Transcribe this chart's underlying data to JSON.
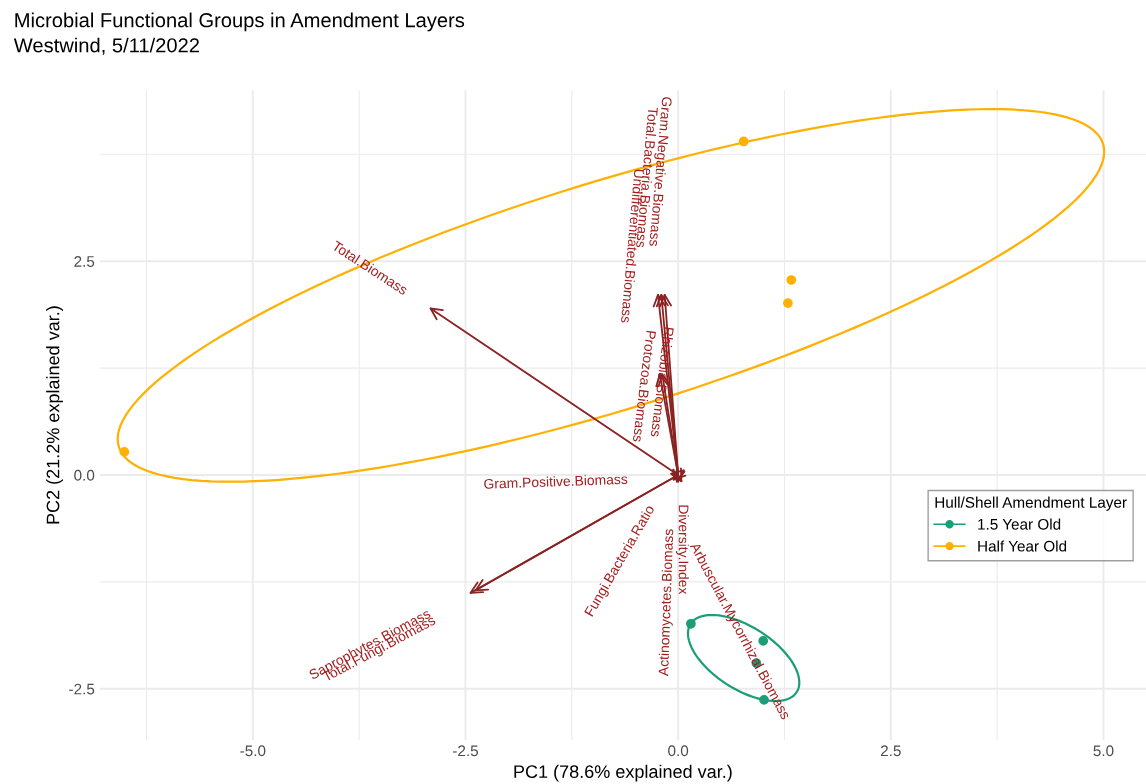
{
  "chart_data": {
    "type": "scatter",
    "title": "Microbial Functional Groups in Amendment Layers",
    "subtitle": "Westwind, 5/11/2022",
    "xlabel": "PC1 (78.6% explained var.)",
    "ylabel": "PC2 (21.2% explained var.)",
    "legend_title": "Hull/Shell Amendment Layer",
    "legend": "right",
    "grid": true,
    "xlim": [
      -6.8,
      5.5
    ],
    "ylim": [
      -3.1,
      4.5
    ],
    "xticks": [
      {
        "value": -5,
        "label": "-5.0"
      },
      {
        "value": -2.5,
        "label": "-2.5"
      },
      {
        "value": 0,
        "label": "0.0"
      },
      {
        "value": 2.5,
        "label": "2.5"
      },
      {
        "value": 5,
        "label": "5.0"
      }
    ],
    "yticks": [
      {
        "value": -2.5,
        "label": "-2.5"
      },
      {
        "value": 0,
        "label": "0.0"
      },
      {
        "value": 2.5,
        "label": "2.5"
      }
    ],
    "series": [
      {
        "name": "1.5 Year Old",
        "color": "#1b9e77",
        "marker": "circle",
        "x": [
          0.15,
          1.0,
          0.92,
          1.01
        ],
        "values": [
          -1.74,
          -1.94,
          -2.2,
          -2.63
        ]
      },
      {
        "name": "Half Year Old",
        "color": "#ffb000",
        "marker": "circle",
        "x": [
          -6.51,
          0.77,
          1.33,
          1.29
        ],
        "values": [
          0.27,
          3.9,
          2.28,
          2.01
        ]
      }
    ],
    "annotations": [
      "Total.Biomass",
      "Gram.Negative.Biomass",
      "Total.Bacteria.Biomass",
      "Undifferentiated.Biomass",
      "Rhizobia.Biomass",
      "Protozoa.Biomass",
      "Gram.Positive.Biomass",
      "Diversity.Index",
      "Fungi.Bacteria.Ratio",
      "Actinomycetes.Biomass",
      "Arbuscular.Mycorrhizal.Biomass",
      "Saprophytes.Biomass",
      "Total.Fungi.Biomass"
    ]
  }
}
